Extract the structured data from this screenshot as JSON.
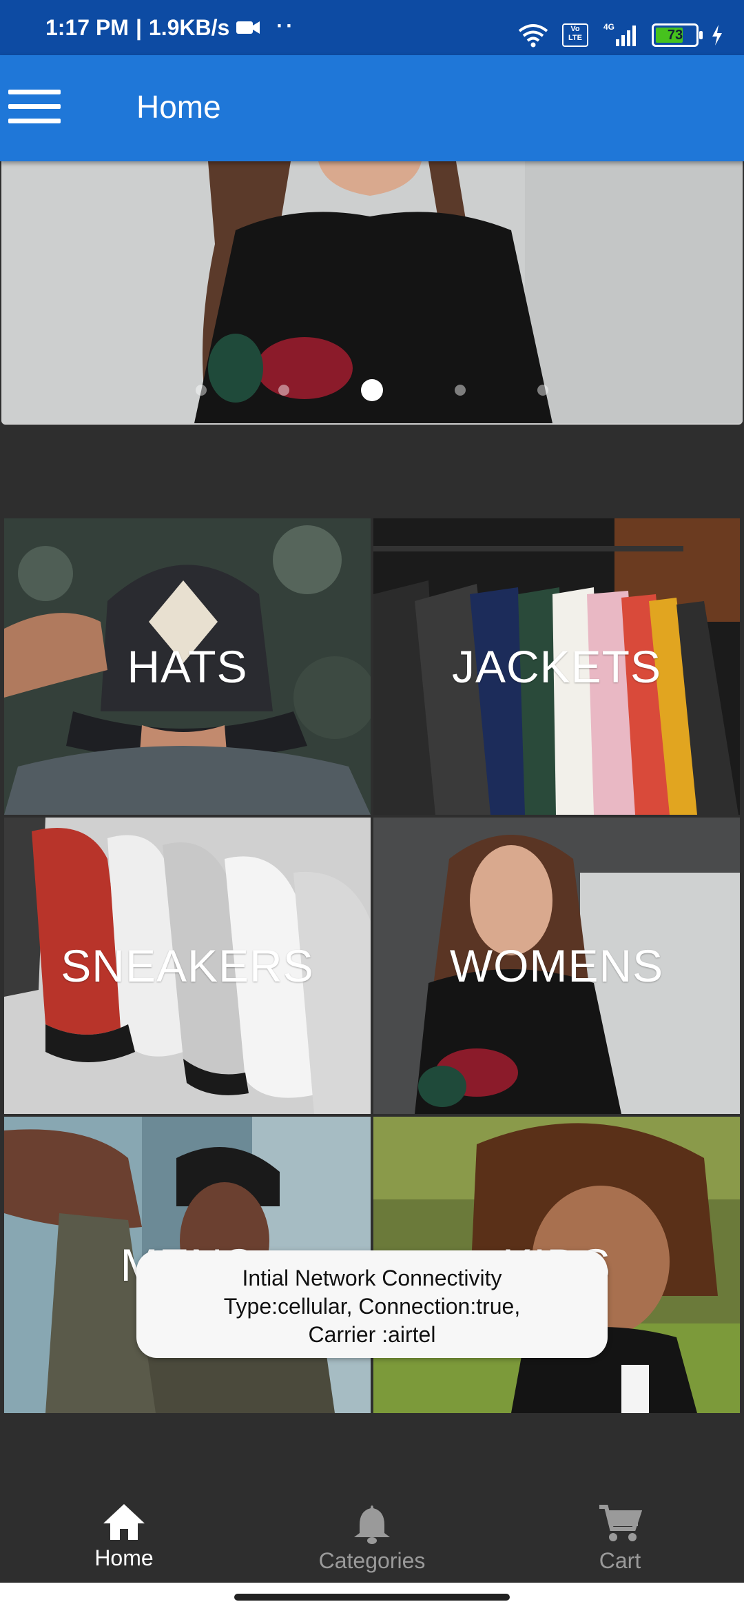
{
  "status_bar": {
    "time": "1:17 PM",
    "speed": "1.9KB/s",
    "extra_dots": "··",
    "volte": "Vo LTE",
    "network": "4G",
    "battery_level": "73",
    "battery_fraction": 0.73
  },
  "app_bar": {
    "title": "Home",
    "menu_icon": "hamburger-menu-icon"
  },
  "carousel": {
    "slide_count": 5,
    "active_index": 2
  },
  "categories": [
    {
      "label": "HATS"
    },
    {
      "label": "JACKETS"
    },
    {
      "label": "SNEAKERS"
    },
    {
      "label": "WOMENS"
    },
    {
      "label": "MENS"
    },
    {
      "label": "KIDS"
    }
  ],
  "toast": {
    "line1": "Intial Network Connectivity",
    "line2": "Type:cellular, Connection:true,",
    "line3": "Carrier :airtel"
  },
  "bottom_nav": {
    "items": [
      {
        "label": "Home",
        "icon": "home-icon",
        "active": true
      },
      {
        "label": "Categories",
        "icon": "bell-icon",
        "active": false
      },
      {
        "label": "Cart",
        "icon": "cart-icon",
        "active": false
      }
    ]
  },
  "colors": {
    "status_bar": "#0d4ba3",
    "app_bar": "#1f77d8",
    "background": "#2e2e2e",
    "battery": "#46c21d"
  }
}
